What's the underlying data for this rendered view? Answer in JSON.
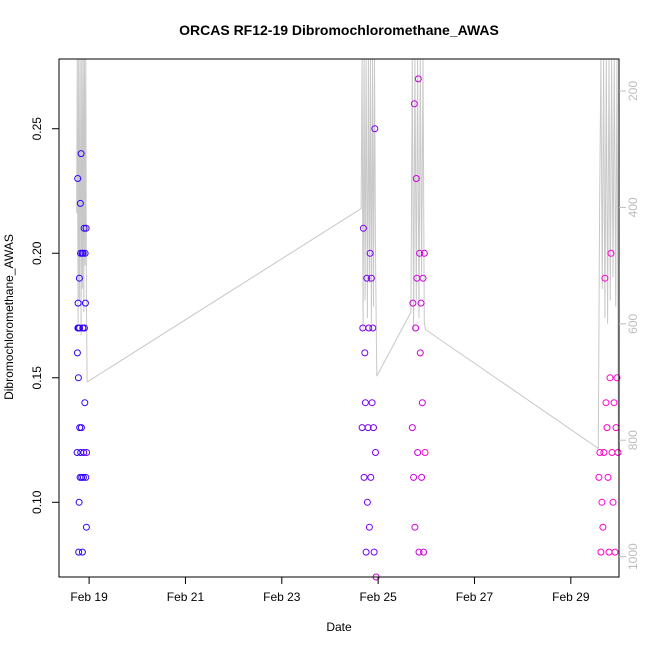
{
  "chart_data": {
    "type": "scatter",
    "title": "ORCAS RF12-19 Dibromochloromethane_AWAS",
    "xlabel": "Date",
    "ylabel": "Dibromochloromethane_AWAS",
    "x_axis": {
      "range": [
        "2016-02-18 09:00",
        "2016-03-01 00:00"
      ],
      "ticks": [
        {
          "value": "2016-02-19",
          "label": "Feb 19"
        },
        {
          "value": "2016-02-21",
          "label": "Feb 21"
        },
        {
          "value": "2016-02-23",
          "label": "Feb 23"
        },
        {
          "value": "2016-02-25",
          "label": "Feb 25"
        },
        {
          "value": "2016-02-27",
          "label": "Feb 27"
        },
        {
          "value": "2016-02-29",
          "label": "Feb 29"
        }
      ]
    },
    "y_axis": {
      "range": [
        0.07,
        0.278
      ],
      "ticks": [
        0.1,
        0.15,
        0.2,
        0.25
      ],
      "tick_labels": [
        "0.10",
        "0.15",
        "0.20",
        "0.25"
      ]
    },
    "y2_axis": {
      "range": [
        1035,
        145
      ],
      "ticks": [
        200,
        400,
        600,
        800,
        1000
      ],
      "tick_labels": [
        "200",
        "400",
        "600",
        "800",
        "1000"
      ],
      "color": "#bdbdbd"
    },
    "marker_colors": [
      "#3300ff",
      "#7700ee",
      "#cc00dd",
      "#ff00cc"
    ],
    "altitude_color": "#c8c8c8",
    "flights": [
      {
        "x": [
          "2016-02-18 18:00",
          "2016-02-18 18:10",
          "2016-02-18 18:20",
          "2016-02-18 18:25",
          "2016-02-18 18:30",
          "2016-02-18 18:40",
          "2016-02-18 18:45",
          "2016-02-18 18:50",
          "2016-02-18 19:00",
          "2016-02-18 19:10",
          "2016-02-18 19:15",
          "2016-02-18 19:20",
          "2016-02-18 19:30",
          "2016-02-18 19:40",
          "2016-02-18 19:45",
          "2016-02-18 19:50",
          "2016-02-18 20:00",
          "2016-02-18 20:10",
          "2016-02-18 20:20",
          "2016-02-18 20:30",
          "2016-02-18 20:40",
          "2016-02-18 20:50",
          "2016-02-18 21:00",
          "2016-02-18 21:10",
          "2016-02-18 21:20",
          "2016-02-18 21:30",
          "2016-02-18 21:40",
          "2016-02-18 21:50",
          "2016-02-18 22:00",
          "2016-02-18 22:10",
          "2016-02-18 22:20",
          "2016-02-18 22:30",
          "2016-02-18 22:40",
          "2016-02-18 22:45"
        ],
        "y": [
          0.12,
          0.16,
          0.23,
          0.17,
          0.18,
          0.15,
          0.17,
          0.08,
          0.1,
          0.19,
          0.17,
          0.13,
          0.11,
          0.22,
          0.2,
          0.12,
          0.24,
          0.13,
          0.11,
          0.2,
          0.08,
          0.17,
          0.2,
          0.11,
          0.12,
          0.21,
          0.17,
          0.14,
          0.2,
          0.18,
          0.11,
          0.21,
          0.09,
          0.12
        ]
      },
      {
        "x": [
          "2016-02-24 16:00",
          "2016-02-24 16:20",
          "2016-02-24 16:40",
          "2016-02-24 17:00",
          "2016-02-24 17:20",
          "2016-02-24 17:40",
          "2016-02-24 18:00",
          "2016-02-24 18:20",
          "2016-02-24 18:40",
          "2016-02-24 19:00",
          "2016-02-24 19:20",
          "2016-02-24 19:40",
          "2016-02-24 20:00",
          "2016-02-24 20:20",
          "2016-02-24 20:40",
          "2016-02-24 21:00",
          "2016-02-24 21:20",
          "2016-02-24 21:40",
          "2016-02-24 22:00",
          "2016-02-24 22:20",
          "2016-02-24 22:40",
          "2016-02-24 23:00"
        ],
        "y": [
          0.13,
          0.17,
          0.21,
          0.11,
          0.16,
          0.14,
          0.08,
          0.19,
          0.1,
          0.13,
          0.17,
          0.09,
          0.2,
          0.11,
          0.19,
          0.14,
          0.17,
          0.13,
          0.08,
          0.25,
          0.12,
          0.07
        ]
      },
      {
        "x": [
          "2016-02-25 17:00",
          "2016-02-25 17:20",
          "2016-02-25 17:40",
          "2016-02-25 18:00",
          "2016-02-25 18:20",
          "2016-02-25 18:40",
          "2016-02-25 19:00",
          "2016-02-25 19:20",
          "2016-02-25 19:40",
          "2016-02-25 20:00",
          "2016-02-25 20:20",
          "2016-02-25 20:40",
          "2016-02-25 21:00",
          "2016-02-25 21:20",
          "2016-02-25 21:40",
          "2016-02-25 22:00",
          "2016-02-25 22:20",
          "2016-02-25 22:40",
          "2016-02-25 23:00",
          "2016-02-25 23:20"
        ],
        "y": [
          0.13,
          0.18,
          0.11,
          0.26,
          0.09,
          0.17,
          0.23,
          0.19,
          0.12,
          0.27,
          0.08,
          0.2,
          0.16,
          0.18,
          0.11,
          0.14,
          0.19,
          0.08,
          0.2,
          0.12
        ]
      },
      {
        "x": [
          "2016-02-29 14:00",
          "2016-02-29 14:30",
          "2016-02-29 15:00",
          "2016-02-29 15:30",
          "2016-02-29 16:00",
          "2016-02-29 16:30",
          "2016-02-29 17:00",
          "2016-02-29 17:30",
          "2016-02-29 18:00",
          "2016-02-29 18:30",
          "2016-02-29 19:00",
          "2016-02-29 19:30",
          "2016-02-29 20:00",
          "2016-02-29 20:30",
          "2016-02-29 21:00",
          "2016-02-29 21:30",
          "2016-02-29 22:00",
          "2016-02-29 22:30",
          "2016-02-29 23:00",
          "2016-02-29 23:30"
        ],
        "y": [
          0.11,
          0.12,
          0.08,
          0.1,
          0.09,
          0.12,
          0.19,
          0.14,
          0.13,
          0.11,
          0.08,
          0.15,
          0.2,
          0.12,
          0.1,
          0.14,
          0.08,
          0.13,
          0.15,
          0.12
        ]
      }
    ],
    "altitude_track": {
      "x": [
        "2016-02-18 17:50",
        "2016-02-18 18:05",
        "2016-02-18 18:30",
        "2016-02-18 18:45",
        "2016-02-18 19:10",
        "2016-02-18 19:30",
        "2016-02-18 20:00",
        "2016-02-18 20:20",
        "2016-02-18 20:40",
        "2016-02-18 21:00",
        "2016-02-18 21:20",
        "2016-02-18 21:40",
        "2016-02-18 22:00",
        "2016-02-18 22:20",
        "2016-02-18 22:40",
        "2016-02-18 23:00",
        "2016-02-24 15:30",
        "2016-02-24 16:00",
        "2016-02-24 16:30",
        "2016-02-24 17:00",
        "2016-02-24 17:30",
        "2016-02-24 18:00",
        "2016-02-24 18:40",
        "2016-02-24 19:10",
        "2016-02-24 19:40",
        "2016-02-24 20:10",
        "2016-02-24 20:40",
        "2016-02-24 21:10",
        "2016-02-24 21:40",
        "2016-02-24 22:10",
        "2016-02-24 22:40",
        "2016-02-24 23:20",
        "2016-02-25 16:20",
        "2016-02-25 17:00",
        "2016-02-25 17:40",
        "2016-02-25 18:20",
        "2016-02-25 19:00",
        "2016-02-25 19:40",
        "2016-02-25 20:20",
        "2016-02-25 21:00",
        "2016-02-25 21:40",
        "2016-02-25 22:20",
        "2016-02-25 23:00",
        "2016-02-25 23:40",
        "2016-02-29 13:40",
        "2016-02-29 14:20",
        "2016-02-29 15:00",
        "2016-02-29 15:40",
        "2016-02-29 16:20",
        "2016-02-29 17:00",
        "2016-02-29 17:40",
        "2016-02-29 18:20",
        "2016-02-29 19:00",
        "2016-02-29 19:40",
        "2016-02-29 20:20",
        "2016-02-29 21:00",
        "2016-02-29 21:40",
        "2016-02-29 22:20",
        "2016-02-29 23:00",
        "2016-02-29 23:40"
      ],
      "y": [
        410,
        145,
        600,
        145,
        560,
        145,
        620,
        145,
        540,
        145,
        580,
        145,
        500,
        145,
        560,
        700,
        402,
        145,
        610,
        145,
        560,
        145,
        590,
        145,
        530,
        145,
        600,
        145,
        570,
        145,
        480,
        690,
        580,
        145,
        610,
        145,
        560,
        145,
        590,
        145,
        520,
        145,
        600,
        610,
        814,
        400,
        145,
        540,
        145,
        590,
        145,
        600,
        145,
        560,
        145,
        520,
        145,
        570,
        145,
        820
      ]
    }
  }
}
